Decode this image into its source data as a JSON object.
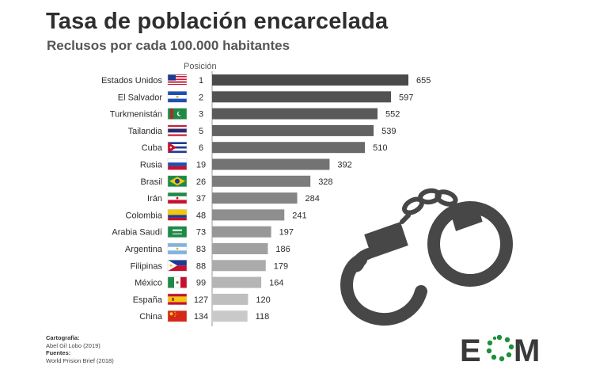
{
  "title": "Tasa de población encarcelada",
  "subtitle": "Reclusos por cada 100.000 habitantes",
  "position_header": "Posición",
  "chart_data": {
    "type": "bar",
    "orientation": "horizontal",
    "title": "Tasa de población encarcelada",
    "subtitle": "Reclusos por cada 100.000 habitantes",
    "categories": [
      "Estados Unidos",
      "El Salvador",
      "Turkmenistán",
      "Tailandia",
      "Cuba",
      "Rusia",
      "Brasil",
      "Irán",
      "Colombia",
      "Arabia Saudí",
      "Argentina",
      "Filipinas",
      "México",
      "España",
      "China"
    ],
    "positions": [
      "1",
      "2",
      "3",
      "5",
      "6",
      "19",
      "26",
      "37",
      "48",
      "73",
      "83",
      "88",
      "99",
      "127",
      "134"
    ],
    "values": [
      655,
      597,
      552,
      539,
      510,
      392,
      328,
      284,
      241,
      197,
      186,
      179,
      164,
      120,
      118
    ],
    "flags": [
      "us-flag-icon",
      "el-salvador-flag-icon",
      "turkmenistan-flag-icon",
      "thailand-flag-icon",
      "cuba-flag-icon",
      "russia-flag-icon",
      "brazil-flag-icon",
      "iran-flag-icon",
      "colombia-flag-icon",
      "saudi-arabia-flag-icon",
      "argentina-flag-icon",
      "philippines-flag-icon",
      "mexico-flag-icon",
      "spain-flag-icon",
      "china-flag-icon"
    ],
    "bar_colors": [
      "#4a4a4a",
      "#525252",
      "#5a5a5a",
      "#626262",
      "#6a6a6a",
      "#737373",
      "#7c7c7c",
      "#858585",
      "#8e8e8e",
      "#979797",
      "#a1a1a1",
      "#ababab",
      "#b5b5b5",
      "#bfbfbf",
      "#c9c9c9"
    ],
    "xlim": [
      0,
      655
    ],
    "grid": false,
    "legend": "none"
  },
  "credits": {
    "cartography_label": "Cartografía:",
    "cartography_value": "Abel Gil Lobo (2019)",
    "sources_label": "Fuentes:",
    "sources_value": "World Prision Brief (2018)"
  },
  "logo": {
    "text": "EOM",
    "letters": [
      "E",
      "M"
    ],
    "accent": "#1f8f3a",
    "dark": "#3a3a3a"
  },
  "decoration": {
    "icon": "handcuffs-icon",
    "color": "#474747"
  }
}
